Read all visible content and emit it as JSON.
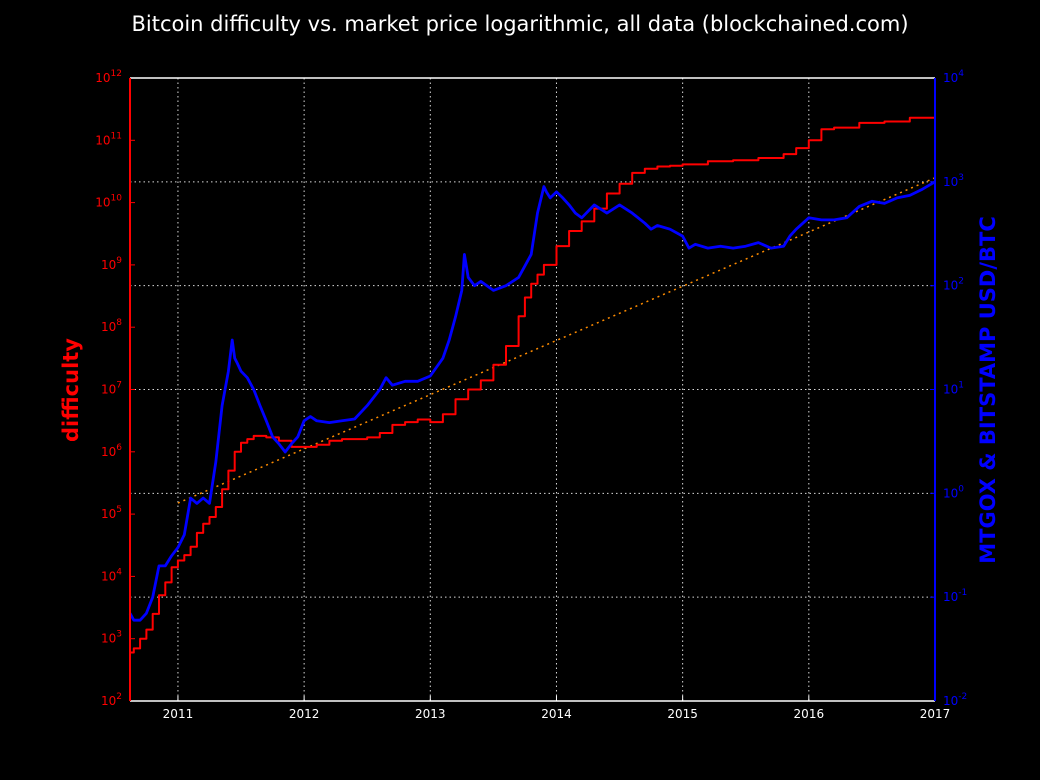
{
  "chart_data": {
    "type": "line",
    "title": "Bitcoin difficulty vs. market price logarithmic, all data (blockchained.com)",
    "xlabel": "",
    "xlim": [
      2010.62,
      2017.0
    ],
    "x_ticks": [
      "2011",
      "2012",
      "2013",
      "2014",
      "2015",
      "2016",
      "2017"
    ],
    "left_axis": {
      "label": "difficulty",
      "color": "#ff0000",
      "scale": "log",
      "ylim": [
        100,
        1000000000000
      ],
      "tick_exponents": [
        "2",
        "3",
        "4",
        "5",
        "6",
        "7",
        "8",
        "9",
        "10",
        "11",
        "12"
      ]
    },
    "right_axis": {
      "label": "MTGOX & BITSTAMP USD/BTC",
      "color": "#0000ff",
      "scale": "log",
      "ylim": [
        0.01,
        10000
      ],
      "tick_exponents": [
        "-2",
        "-1",
        "0",
        "1",
        "2",
        "3",
        "4"
      ]
    },
    "grid": true,
    "colors": {
      "background": "#000000",
      "difficulty": "#ff0000",
      "price": "#0000ff",
      "trend": "#ff8c00",
      "grid": "#ffffff"
    },
    "series": [
      {
        "name": "difficulty",
        "axis": "left",
        "x": [
          2010.62,
          2010.65,
          2010.7,
          2010.75,
          2010.8,
          2010.85,
          2010.9,
          2010.95,
          2011.0,
          2011.05,
          2011.1,
          2011.15,
          2011.2,
          2011.25,
          2011.3,
          2011.35,
          2011.4,
          2011.45,
          2011.5,
          2011.55,
          2011.6,
          2011.7,
          2011.8,
          2011.9,
          2012.0,
          2012.1,
          2012.2,
          2012.3,
          2012.4,
          2012.5,
          2012.6,
          2012.7,
          2012.8,
          2012.9,
          2013.0,
          2013.1,
          2013.2,
          2013.3,
          2013.4,
          2013.5,
          2013.6,
          2013.7,
          2013.75,
          2013.8,
          2013.85,
          2013.9,
          2014.0,
          2014.1,
          2014.2,
          2014.3,
          2014.4,
          2014.5,
          2014.6,
          2014.7,
          2014.8,
          2014.9,
          2015.0,
          2015.2,
          2015.4,
          2015.6,
          2015.8,
          2015.9,
          2016.0,
          2016.1,
          2016.2,
          2016.4,
          2016.6,
          2016.8,
          2017.0
        ],
        "y": [
          600,
          700,
          1000,
          1400,
          2500,
          5000,
          8000,
          14000,
          18000,
          22000,
          30000,
          50000,
          70000,
          90000,
          130000,
          250000,
          500000,
          1000000,
          1400000,
          1600000,
          1800000,
          1700000,
          1500000,
          1200000,
          1200000,
          1300000,
          1500000,
          1600000,
          1600000,
          1700000,
          2000000,
          2700000,
          3000000,
          3300000,
          3000000,
          4000000,
          7000000,
          10000000,
          14000000,
          25000000,
          50000000,
          150000000,
          300000000,
          500000000,
          700000000,
          1000000000,
          2000000000,
          3500000000,
          5000000000,
          8000000000,
          14000000000,
          20000000000,
          30000000000,
          35000000000,
          38000000000,
          39000000000,
          41000000000,
          46000000000,
          48000000000,
          52000000000,
          60000000000,
          75000000000,
          100000000000,
          150000000000,
          160000000000,
          190000000000,
          200000000000,
          230000000000,
          300000000000
        ]
      },
      {
        "name": "USD/BTC",
        "axis": "right",
        "x": [
          2010.62,
          2010.65,
          2010.7,
          2010.75,
          2010.8,
          2010.85,
          2010.9,
          2010.95,
          2011.0,
          2011.05,
          2011.1,
          2011.15,
          2011.2,
          2011.25,
          2011.3,
          2011.35,
          2011.4,
          2011.43,
          2011.45,
          2011.47,
          2011.5,
          2011.55,
          2011.6,
          2011.65,
          2011.7,
          2011.75,
          2011.8,
          2011.85,
          2011.9,
          2011.95,
          2012.0,
          2012.05,
          2012.1,
          2012.2,
          2012.3,
          2012.4,
          2012.5,
          2012.6,
          2012.65,
          2012.7,
          2012.8,
          2012.9,
          2013.0,
          2013.1,
          2013.15,
          2013.2,
          2013.25,
          2013.27,
          2013.3,
          2013.35,
          2013.4,
          2013.5,
          2013.6,
          2013.7,
          2013.8,
          2013.85,
          2013.9,
          2013.92,
          2013.95,
          2014.0,
          2014.05,
          2014.1,
          2014.15,
          2014.2,
          2014.3,
          2014.4,
          2014.5,
          2014.6,
          2014.7,
          2014.75,
          2014.8,
          2014.9,
          2015.0,
          2015.05,
          2015.1,
          2015.2,
          2015.3,
          2015.4,
          2015.5,
          2015.6,
          2015.7,
          2015.8,
          2015.85,
          2015.9,
          2016.0,
          2016.1,
          2016.2,
          2016.3,
          2016.4,
          2016.5,
          2016.6,
          2016.7,
          2016.8,
          2016.9,
          2017.0
        ],
        "y": [
          0.07,
          0.06,
          0.06,
          0.07,
          0.1,
          0.2,
          0.2,
          0.25,
          0.3,
          0.4,
          0.9,
          0.8,
          0.9,
          0.8,
          2,
          7,
          15,
          30,
          20,
          18,
          15,
          13,
          10,
          7,
          5,
          3.5,
          3,
          2.5,
          3,
          3.5,
          5,
          5.5,
          5,
          4.8,
          5,
          5.2,
          7,
          10,
          13,
          11,
          12,
          12,
          13.5,
          20,
          30,
          50,
          90,
          200,
          120,
          100,
          110,
          90,
          100,
          120,
          200,
          500,
          900,
          800,
          700,
          800,
          700,
          600,
          500,
          450,
          600,
          500,
          600,
          500,
          400,
          350,
          380,
          350,
          300,
          230,
          250,
          230,
          240,
          230,
          240,
          260,
          230,
          240,
          300,
          350,
          450,
          430,
          430,
          450,
          580,
          650,
          620,
          700,
          740,
          850,
          1000
        ]
      },
      {
        "name": "trend",
        "axis": "left",
        "style": "dotted",
        "x": [
          2011.0,
          2017.0
        ],
        "y": [
          150000,
          25000000000
        ]
      }
    ]
  }
}
